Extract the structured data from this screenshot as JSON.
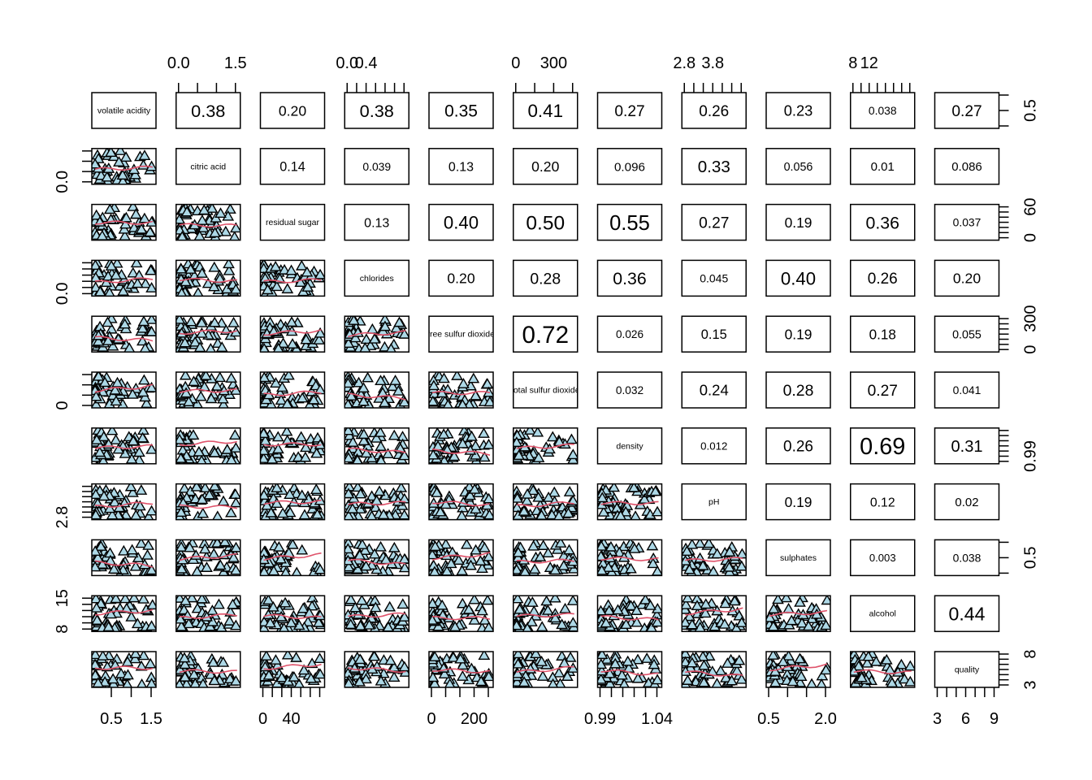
{
  "chart_data": {
    "type": "scatter-matrix",
    "variables": [
      "volatile acidity",
      "citric acid",
      "residual sugar",
      "chlorides",
      "free sulfur dioxide",
      "total sulfur dioxide",
      "density",
      "pH",
      "sulphates",
      "alcohol",
      "quality"
    ],
    "upper_panel": "absolute correlation",
    "lower_panel": "scatter with smooth line",
    "correlations": [
      [
        "0.38",
        "0.20",
        "0.38",
        "0.35",
        "0.41",
        "0.27",
        "0.26",
        "0.23",
        "0.038",
        "0.27"
      ],
      [
        "0.14",
        "0.039",
        "0.13",
        "0.20",
        "0.096",
        "0.33",
        "0.056",
        "0.01",
        "0.086"
      ],
      [
        "0.13",
        "0.40",
        "0.50",
        "0.55",
        "0.27",
        "0.19",
        "0.36",
        "0.037"
      ],
      [
        "0.20",
        "0.28",
        "0.36",
        "0.045",
        "0.40",
        "0.26",
        "0.20"
      ],
      [
        "0.72",
        "0.026",
        "0.15",
        "0.19",
        "0.18",
        "0.055"
      ],
      [
        "0.032",
        "0.24",
        "0.28",
        "0.27",
        "0.041"
      ],
      [
        "0.012",
        "0.26",
        "0.69",
        "0.31"
      ],
      [
        "0.19",
        "0.12",
        "0.02"
      ],
      [
        "0.003",
        "0.038"
      ],
      [
        "0.44"
      ]
    ],
    "axes": {
      "top": {
        "1": [
          "0.0",
          "",
          "",
          "1.5"
        ],
        "3": [
          "0.0",
          "",
          "0.4",
          "",
          "",
          "",
          ""
        ],
        "5": [
          "0",
          "",
          "300",
          ""
        ],
        "7": [
          "2.8",
          "",
          "",
          "3.8",
          "",
          "",
          ""
        ],
        "9": [
          "8",
          "",
          "12",
          "",
          "",
          "",
          "",
          ""
        ]
      },
      "bottom": {
        "0": [
          "0.5",
          "",
          "1.5"
        ],
        "2": [
          "0",
          "",
          "",
          "40",
          "",
          "",
          ""
        ],
        "4": [
          "0",
          "",
          "",
          "200",
          ""
        ],
        "6": [
          "0.99",
          "",
          "",
          "",
          "",
          "1.04"
        ],
        "8": [
          "0.5",
          "",
          "",
          "2.0"
        ],
        "10": [
          "3",
          "",
          "",
          "6",
          "",
          "",
          "9"
        ]
      },
      "left": {
        "1": [
          "0.0",
          "",
          "",
          ""
        ],
        "3": [
          "0.0",
          "",
          "",
          "",
          "",
          ""
        ],
        "5": [
          "0",
          "",
          "",
          ""
        ],
        "7": [
          "2.8",
          "",
          "",
          "",
          "",
          "",
          ""
        ],
        "9": [
          "8",
          "",
          "",
          "",
          "",
          "15"
        ]
      },
      "right": {
        "0": [
          "",
          "0.5",
          ""
        ],
        "2": [
          "0",
          "",
          "",
          "",
          "",
          "",
          "60"
        ],
        "4": [
          "0",
          "",
          "",
          "",
          "",
          "",
          "300"
        ],
        "6": [
          "",
          "0.99",
          "",
          "",
          "",
          "",
          ""
        ],
        "8": [
          "",
          "0.5",
          ""
        ],
        "10": [
          "3",
          "",
          "",
          "",
          "",
          "",
          "8"
        ]
      }
    },
    "point_shape": "triangle",
    "point_fill": "#add8e6",
    "point_stroke": "#000000",
    "smooth_color": "#df536b"
  }
}
